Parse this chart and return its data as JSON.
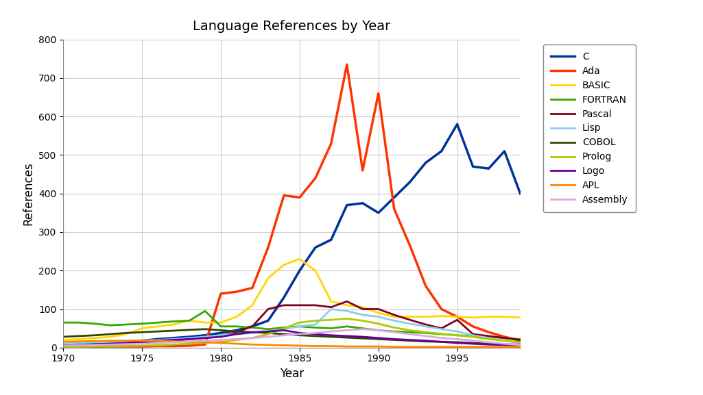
{
  "title": "Language References by Year",
  "xlabel": "Year",
  "ylabel": "References",
  "ylim": [
    0,
    800
  ],
  "yticks": [
    0,
    100,
    200,
    300,
    400,
    500,
    600,
    700,
    800
  ],
  "xticks": [
    1970,
    1975,
    1980,
    1985,
    1990,
    1995
  ],
  "years": [
    1970,
    1971,
    1972,
    1973,
    1974,
    1975,
    1976,
    1977,
    1978,
    1979,
    1980,
    1981,
    1982,
    1983,
    1984,
    1985,
    1986,
    1987,
    1988,
    1989,
    1990,
    1991,
    1992,
    1993,
    1994,
    1995,
    1996,
    1997,
    1998,
    1999
  ],
  "xlim": [
    1970,
    1999
  ],
  "series": {
    "C": {
      "color": "#003399",
      "linewidth": 2.5,
      "values": [
        8,
        10,
        12,
        14,
        16,
        18,
        22,
        25,
        28,
        32,
        38,
        45,
        55,
        70,
        130,
        200,
        260,
        280,
        370,
        375,
        350,
        390,
        430,
        480,
        510,
        580,
        470,
        465,
        510,
        400
      ]
    },
    "Ada": {
      "color": "#FF3300",
      "linewidth": 2.5,
      "values": [
        2,
        2,
        2,
        3,
        3,
        3,
        4,
        4,
        5,
        8,
        140,
        145,
        155,
        260,
        395,
        390,
        440,
        530,
        735,
        460,
        660,
        360,
        265,
        160,
        100,
        80,
        55,
        40,
        28,
        18
      ]
    },
    "BASIC": {
      "color": "#FFD700",
      "linewidth": 2.0,
      "values": [
        20,
        22,
        25,
        28,
        35,
        50,
        55,
        60,
        70,
        65,
        65,
        80,
        110,
        180,
        215,
        230,
        200,
        120,
        110,
        105,
        90,
        80,
        80,
        80,
        82,
        80,
        78,
        80,
        80,
        78
      ]
    },
    "FORTRAN": {
      "color": "#33AA00",
      "linewidth": 2.0,
      "values": [
        65,
        65,
        62,
        58,
        60,
        62,
        65,
        68,
        70,
        95,
        55,
        55,
        52,
        48,
        52,
        55,
        52,
        50,
        55,
        50,
        45,
        42,
        40,
        38,
        35,
        32,
        30,
        28,
        25,
        22
      ]
    },
    "Pascal": {
      "color": "#800020",
      "linewidth": 2.0,
      "values": [
        5,
        5,
        7,
        8,
        10,
        12,
        15,
        18,
        22,
        25,
        30,
        40,
        55,
        100,
        110,
        110,
        110,
        105,
        120,
        100,
        100,
        85,
        72,
        60,
        50,
        72,
        35,
        30,
        25,
        20
      ]
    },
    "Lisp": {
      "color": "#87CEEB",
      "linewidth": 2.0,
      "values": [
        10,
        12,
        14,
        15,
        16,
        18,
        20,
        22,
        25,
        28,
        32,
        35,
        38,
        42,
        48,
        55,
        60,
        100,
        95,
        85,
        80,
        70,
        62,
        55,
        48,
        42,
        32,
        25,
        18,
        12
      ]
    },
    "COBOL": {
      "color": "#334400",
      "linewidth": 2.0,
      "values": [
        28,
        30,
        32,
        35,
        38,
        40,
        42,
        44,
        46,
        48,
        45,
        42,
        40,
        38,
        35,
        32,
        30,
        28,
        26,
        24,
        22,
        20,
        18,
        16,
        15,
        14,
        12,
        10,
        9,
        8
      ]
    },
    "Prolog": {
      "color": "#AACC00",
      "linewidth": 2.0,
      "values": [
        2,
        2,
        3,
        3,
        4,
        5,
        6,
        8,
        10,
        12,
        15,
        20,
        25,
        35,
        50,
        65,
        70,
        72,
        75,
        70,
        62,
        52,
        45,
        40,
        36,
        32,
        28,
        22,
        18,
        14
      ]
    },
    "Logo": {
      "color": "#660099",
      "linewidth": 2.0,
      "values": [
        5,
        6,
        8,
        10,
        12,
        15,
        18,
        20,
        22,
        25,
        28,
        35,
        40,
        42,
        45,
        38,
        35,
        32,
        30,
        28,
        25,
        22,
        20,
        18,
        15,
        12,
        10,
        8,
        7,
        5
      ]
    },
    "APL": {
      "color": "#FF8800",
      "linewidth": 2.0,
      "values": [
        15,
        16,
        17,
        18,
        18,
        18,
        17,
        16,
        15,
        14,
        12,
        10,
        8,
        7,
        6,
        5,
        4,
        4,
        3,
        3,
        3,
        2,
        2,
        2,
        2,
        2,
        2,
        2,
        2,
        2
      ]
    },
    "Assembly": {
      "color": "#DDAADD",
      "linewidth": 2.0,
      "values": [
        5,
        6,
        7,
        8,
        9,
        10,
        12,
        14,
        16,
        18,
        20,
        22,
        25,
        28,
        32,
        35,
        38,
        42,
        45,
        48,
        45,
        40,
        35,
        30,
        25,
        22,
        18,
        14,
        10,
        7
      ]
    }
  }
}
